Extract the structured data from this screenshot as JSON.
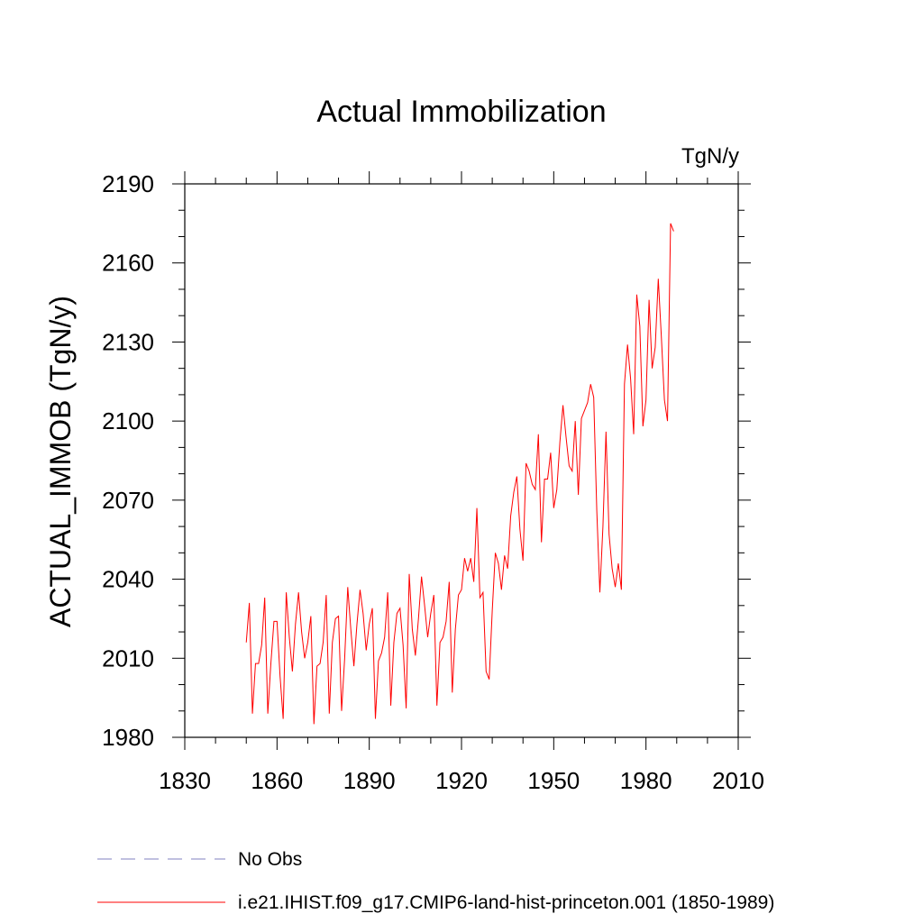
{
  "chart_data": {
    "type": "line",
    "title": "Actual Immobilization",
    "units": "TgN/y",
    "ylabel": "ACTUAL_IMMOB  (TgN/y)",
    "xlabel": "",
    "xlim": [
      1830,
      2010
    ],
    "ylim": [
      1980,
      2190
    ],
    "xticks": [
      1830,
      1860,
      1890,
      1920,
      1950,
      1980,
      2010
    ],
    "yticks": [
      1980,
      2010,
      2040,
      2070,
      2100,
      2130,
      2160,
      2190
    ],
    "legend": [
      {
        "label": "No Obs",
        "color": "#8080c0",
        "style": "dashed"
      },
      {
        "label": "i.e21.IHIST.f09_g17.CMIP6-land-hist-princeton.001 (1850-1989)",
        "color": "#ff0000",
        "style": "solid"
      }
    ],
    "series": [
      {
        "name": "i.e21.IHIST.f09_g17.CMIP6-land-hist-princeton.001 (1850-1989)",
        "color": "#ff0000",
        "x": [
          1850,
          1851,
          1852,
          1853,
          1854,
          1855,
          1856,
          1857,
          1858,
          1859,
          1860,
          1861,
          1862,
          1863,
          1864,
          1865,
          1866,
          1867,
          1868,
          1869,
          1870,
          1871,
          1872,
          1873,
          1874,
          1875,
          1876,
          1877,
          1878,
          1879,
          1880,
          1881,
          1882,
          1883,
          1884,
          1885,
          1886,
          1887,
          1888,
          1889,
          1890,
          1891,
          1892,
          1893,
          1894,
          1895,
          1896,
          1897,
          1898,
          1899,
          1900,
          1901,
          1902,
          1903,
          1904,
          1905,
          1906,
          1907,
          1908,
          1909,
          1910,
          1911,
          1912,
          1913,
          1914,
          1915,
          1916,
          1917,
          1918,
          1919,
          1920,
          1921,
          1922,
          1923,
          1924,
          1925,
          1926,
          1927,
          1928,
          1929,
          1930,
          1931,
          1932,
          1933,
          1934,
          1935,
          1936,
          1937,
          1938,
          1939,
          1940,
          1941,
          1942,
          1943,
          1944,
          1945,
          1946,
          1947,
          1948,
          1949,
          1950,
          1951,
          1952,
          1953,
          1954,
          1955,
          1956,
          1957,
          1958,
          1959,
          1960,
          1961,
          1962,
          1963,
          1964,
          1965,
          1966,
          1967,
          1968,
          1969,
          1970,
          1971,
          1972,
          1973,
          1974,
          1975,
          1976,
          1977,
          1978,
          1979,
          1980,
          1981,
          1982,
          1983,
          1984,
          1985,
          1986,
          1987,
          1988,
          1989
        ],
        "values": [
          2016,
          2031,
          1989,
          2008,
          2008,
          2015,
          2033,
          1989,
          2008,
          2024,
          2024,
          2003,
          1987,
          2035,
          2018,
          2005,
          2023,
          2035,
          2020,
          2010,
          2016,
          2026,
          1985,
          2007,
          2008,
          2016,
          2034,
          1989,
          2016,
          2025,
          2026,
          1990,
          2010,
          2037,
          2021,
          2007,
          2023,
          2036,
          2027,
          2013,
          2023,
          2029,
          1987,
          2009,
          2012,
          2018,
          2035,
          1992,
          2016,
          2027,
          2029,
          2015,
          1991,
          2042,
          2021,
          2011,
          2025,
          2041,
          2030,
          2018,
          2027,
          2034,
          1992,
          2016,
          2018,
          2024,
          2039,
          1997,
          2021,
          2034,
          2036,
          2048,
          2043,
          2048,
          2039,
          2067,
          2033,
          2035,
          2005,
          2002,
          2028,
          2050,
          2046,
          2036,
          2049,
          2044,
          2064,
          2073,
          2079,
          2059,
          2047,
          2084,
          2081,
          2076,
          2074,
          2095,
          2054,
          2078,
          2078,
          2088,
          2067,
          2074,
          2092,
          2106,
          2094,
          2083,
          2081,
          2100,
          2072,
          2101,
          2104,
          2107,
          2114,
          2109,
          2066,
          2035,
          2060,
          2096,
          2057,
          2044,
          2037,
          2046,
          2036,
          2114,
          2129,
          2116,
          2095,
          2148,
          2136,
          2098,
          2108,
          2146,
          2120,
          2128,
          2154,
          2132,
          2108,
          2100,
          2175,
          2172
        ]
      }
    ]
  }
}
